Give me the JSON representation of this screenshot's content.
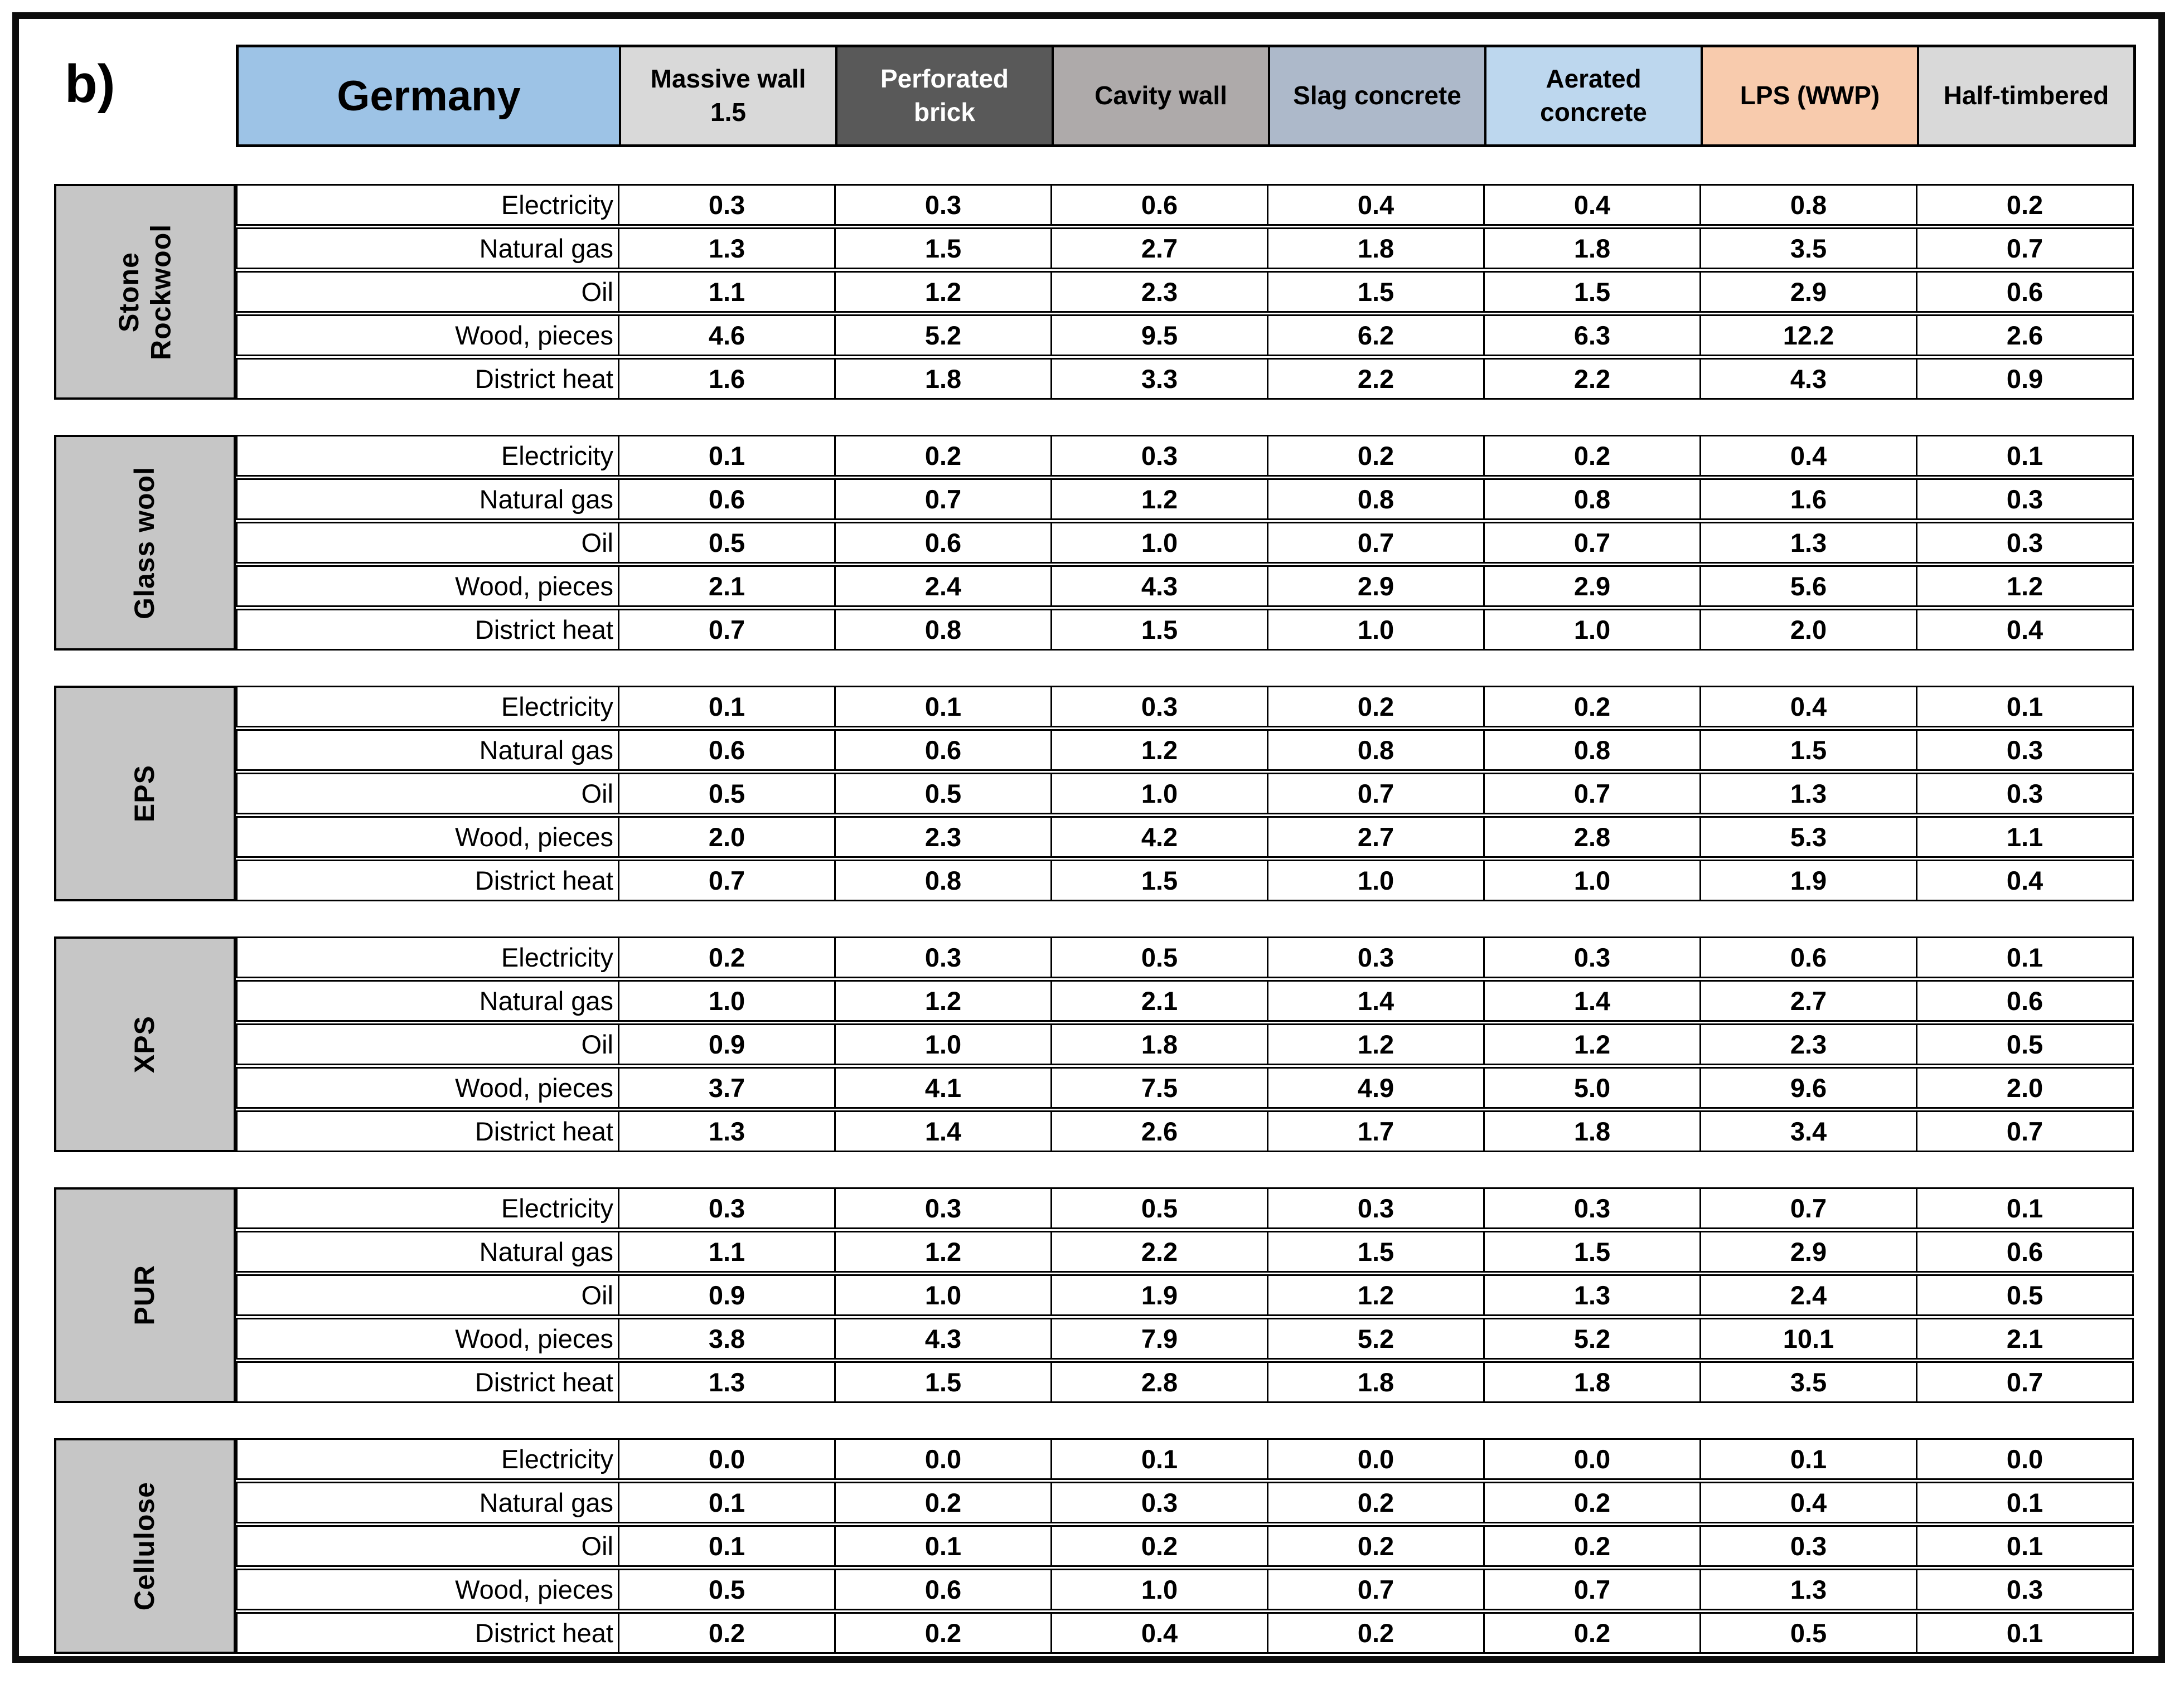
{
  "figure_label": "b)",
  "colors": {
    "country_bg": "#9DC3E6",
    "column_bgs": [
      "#D9D9D9",
      "#595959",
      "#AEAAAA",
      "#ADB9CA",
      "#BDD7EE",
      "#F8CBAD",
      "#D9D9D9"
    ],
    "column_fgs": [
      "#000000",
      "#FFFFFF",
      "#000000",
      "#000000",
      "#000000",
      "#000000",
      "#000000"
    ],
    "section_label_bg": "#C6C6C6",
    "border": "#000000"
  },
  "chart_data": {
    "type": "table",
    "title": "Germany",
    "column_groups": [
      "Massive wall 1.5",
      "Perforated brick",
      "Cavity wall",
      "Slag concrete",
      "Aerated concrete",
      "LPS (WWP)",
      "Half-timbered"
    ],
    "sections": [
      {
        "material": "Stone Rockwool",
        "rows": [
          {
            "label": "Electricity",
            "values": [
              "0.3",
              "0.3",
              "0.6",
              "0.4",
              "0.4",
              "0.8",
              "0.2"
            ]
          },
          {
            "label": "Natural gas",
            "values": [
              "1.3",
              "1.5",
              "2.7",
              "1.8",
              "1.8",
              "3.5",
              "0.7"
            ]
          },
          {
            "label": "Oil",
            "values": [
              "1.1",
              "1.2",
              "2.3",
              "1.5",
              "1.5",
              "2.9",
              "0.6"
            ]
          },
          {
            "label": "Wood, pieces",
            "values": [
              "4.6",
              "5.2",
              "9.5",
              "6.2",
              "6.3",
              "12.2",
              "2.6"
            ]
          },
          {
            "label": "District heat",
            "values": [
              "1.6",
              "1.8",
              "3.3",
              "2.2",
              "2.2",
              "4.3",
              "0.9"
            ]
          }
        ]
      },
      {
        "material": "Glass wool",
        "rows": [
          {
            "label": "Electricity",
            "values": [
              "0.1",
              "0.2",
              "0.3",
              "0.2",
              "0.2",
              "0.4",
              "0.1"
            ]
          },
          {
            "label": "Natural gas",
            "values": [
              "0.6",
              "0.7",
              "1.2",
              "0.8",
              "0.8",
              "1.6",
              "0.3"
            ]
          },
          {
            "label": "Oil",
            "values": [
              "0.5",
              "0.6",
              "1.0",
              "0.7",
              "0.7",
              "1.3",
              "0.3"
            ]
          },
          {
            "label": "Wood, pieces",
            "values": [
              "2.1",
              "2.4",
              "4.3",
              "2.9",
              "2.9",
              "5.6",
              "1.2"
            ]
          },
          {
            "label": "District heat",
            "values": [
              "0.7",
              "0.8",
              "1.5",
              "1.0",
              "1.0",
              "2.0",
              "0.4"
            ]
          }
        ]
      },
      {
        "material": "EPS",
        "rows": [
          {
            "label": "Electricity",
            "values": [
              "0.1",
              "0.1",
              "0.3",
              "0.2",
              "0.2",
              "0.4",
              "0.1"
            ]
          },
          {
            "label": "Natural gas",
            "values": [
              "0.6",
              "0.6",
              "1.2",
              "0.8",
              "0.8",
              "1.5",
              "0.3"
            ]
          },
          {
            "label": "Oil",
            "values": [
              "0.5",
              "0.5",
              "1.0",
              "0.7",
              "0.7",
              "1.3",
              "0.3"
            ]
          },
          {
            "label": "Wood, pieces",
            "values": [
              "2.0",
              "2.3",
              "4.2",
              "2.7",
              "2.8",
              "5.3",
              "1.1"
            ]
          },
          {
            "label": "District heat",
            "values": [
              "0.7",
              "0.8",
              "1.5",
              "1.0",
              "1.0",
              "1.9",
              "0.4"
            ]
          }
        ]
      },
      {
        "material": "XPS",
        "rows": [
          {
            "label": "Electricity",
            "values": [
              "0.2",
              "0.3",
              "0.5",
              "0.3",
              "0.3",
              "0.6",
              "0.1"
            ]
          },
          {
            "label": "Natural gas",
            "values": [
              "1.0",
              "1.2",
              "2.1",
              "1.4",
              "1.4",
              "2.7",
              "0.6"
            ]
          },
          {
            "label": "Oil",
            "values": [
              "0.9",
              "1.0",
              "1.8",
              "1.2",
              "1.2",
              "2.3",
              "0.5"
            ]
          },
          {
            "label": "Wood, pieces",
            "values": [
              "3.7",
              "4.1",
              "7.5",
              "4.9",
              "5.0",
              "9.6",
              "2.0"
            ]
          },
          {
            "label": "District heat",
            "values": [
              "1.3",
              "1.4",
              "2.6",
              "1.7",
              "1.8",
              "3.4",
              "0.7"
            ]
          }
        ]
      },
      {
        "material": "PUR",
        "rows": [
          {
            "label": "Electricity",
            "values": [
              "0.3",
              "0.3",
              "0.5",
              "0.3",
              "0.3",
              "0.7",
              "0.1"
            ]
          },
          {
            "label": "Natural gas",
            "values": [
              "1.1",
              "1.2",
              "2.2",
              "1.5",
              "1.5",
              "2.9",
              "0.6"
            ]
          },
          {
            "label": "Oil",
            "values": [
              "0.9",
              "1.0",
              "1.9",
              "1.2",
              "1.3",
              "2.4",
              "0.5"
            ]
          },
          {
            "label": "Wood, pieces",
            "values": [
              "3.8",
              "4.3",
              "7.9",
              "5.2",
              "5.2",
              "10.1",
              "2.1"
            ]
          },
          {
            "label": "District heat",
            "values": [
              "1.3",
              "1.5",
              "2.8",
              "1.8",
              "1.8",
              "3.5",
              "0.7"
            ]
          }
        ]
      },
      {
        "material": "Cellulose",
        "rows": [
          {
            "label": "Electricity",
            "values": [
              "0.0",
              "0.0",
              "0.1",
              "0.0",
              "0.0",
              "0.1",
              "0.0"
            ]
          },
          {
            "label": "Natural gas",
            "values": [
              "0.1",
              "0.2",
              "0.3",
              "0.2",
              "0.2",
              "0.4",
              "0.1"
            ]
          },
          {
            "label": "Oil",
            "values": [
              "0.1",
              "0.1",
              "0.2",
              "0.2",
              "0.2",
              "0.3",
              "0.1"
            ]
          },
          {
            "label": "Wood, pieces",
            "values": [
              "0.5",
              "0.6",
              "1.0",
              "0.7",
              "0.7",
              "1.3",
              "0.3"
            ]
          },
          {
            "label": "District heat",
            "values": [
              "0.2",
              "0.2",
              "0.4",
              "0.2",
              "0.2",
              "0.5",
              "0.1"
            ]
          }
        ]
      }
    ]
  }
}
